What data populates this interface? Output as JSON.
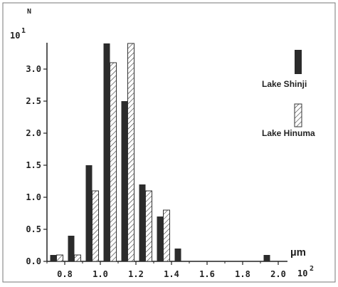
{
  "chart_data": {
    "type": "bar",
    "y_axis_symbol": "N",
    "y_scale_label": "10",
    "y_scale_exponent": "1",
    "x_unit": "µm",
    "x_scale_label": "10",
    "x_scale_exponent": "2",
    "xlim": [
      0.7,
      2.0
    ],
    "ylim": [
      0,
      3.6
    ],
    "x_ticks": [
      "0.8",
      "1.0",
      "1.2",
      "1.4",
      "1.6",
      "1.8",
      "2.0"
    ],
    "y_ticks": [
      "0.0",
      "0.5",
      "1.0",
      "1.5",
      "2.0",
      "2.5",
      "3.0"
    ],
    "bin_starts": [
      0.75,
      0.85,
      0.95,
      1.05,
      1.15,
      1.25,
      1.35,
      1.45,
      1.95
    ],
    "series": [
      {
        "name": "Lake Shinji",
        "fill": "solid",
        "values": [
          0.1,
          0.4,
          1.5,
          3.4,
          2.5,
          1.2,
          0.7,
          0.2,
          0.1
        ]
      },
      {
        "name": "Lake Hinuma",
        "fill": "hatched",
        "values": [
          0.1,
          0.1,
          1.1,
          3.1,
          3.4,
          1.1,
          0.8,
          0.0,
          0.0
        ]
      }
    ],
    "legend_placement": "right",
    "grid": false
  },
  "colors": {
    "solid_bar": "#2b2b2b",
    "hatch": "#333333",
    "axis": "#222222"
  }
}
